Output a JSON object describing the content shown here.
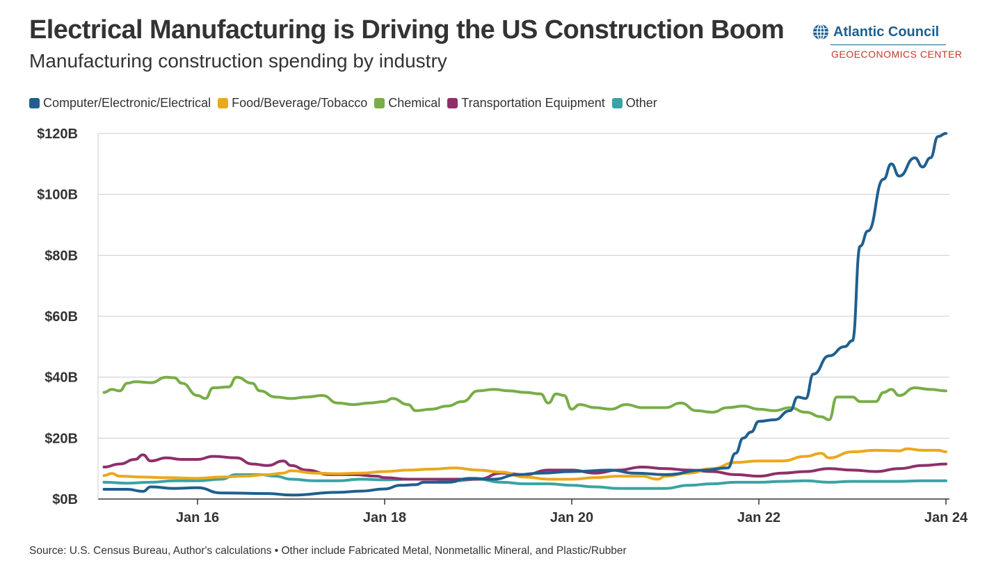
{
  "header": {
    "title": "Electrical Manufacturing is Driving the US Construction Boom",
    "subtitle": "Manufacturing construction spending by industry"
  },
  "logo": {
    "name": "Atlantic Council",
    "subtitle": "GEOECONOMICS CENTER",
    "icon": "globe-icon"
  },
  "footer": {
    "source": "Source: U.S. Census Bureau, Author's calculations • Other include Fabricated Metal, Nonmetallic Mineral, and Plastic/Rubber"
  },
  "chart_data": {
    "type": "line",
    "title": "Electrical Manufacturing is Driving the US Construction Boom",
    "subtitle": "Manufacturing construction spending by industry",
    "xlabel": "",
    "ylabel": "",
    "ylim": [
      0,
      120
    ],
    "xlim": [
      "2015-01",
      "2024-01"
    ],
    "y_unit": "billion USD",
    "grid": "horizontal",
    "legend_position": "top-left",
    "y_ticks": [
      {
        "value": 0,
        "label": "$0B"
      },
      {
        "value": 20,
        "label": "$20B"
      },
      {
        "value": 40,
        "label": "$40B"
      },
      {
        "value": 60,
        "label": "$60B"
      },
      {
        "value": 80,
        "label": "$80B"
      },
      {
        "value": 100,
        "label": "$100B"
      },
      {
        "value": 120,
        "label": "$120B"
      }
    ],
    "x_ticks": [
      {
        "value": "2016-01",
        "label": "Jan 16"
      },
      {
        "value": "2018-01",
        "label": "Jan 18"
      },
      {
        "value": "2020-01",
        "label": "Jan 20"
      },
      {
        "value": "2022-01",
        "label": "Jan 22"
      },
      {
        "value": "2024-01",
        "label": "Jan 24"
      }
    ],
    "series": [
      {
        "name": "Computer/Electronic/Electrical",
        "color": "#1f5f8f",
        "points": [
          [
            "2015-01",
            3.2
          ],
          [
            "2015-04",
            3.2
          ],
          [
            "2015-06",
            2.5
          ],
          [
            "2015-07",
            4.0
          ],
          [
            "2015-10",
            3.5
          ],
          [
            "2016-01",
            3.7
          ],
          [
            "2016-04",
            2.0
          ],
          [
            "2016-10",
            1.8
          ],
          [
            "2017-01",
            1.3
          ],
          [
            "2017-07",
            2.2
          ],
          [
            "2017-10",
            2.6
          ],
          [
            "2018-01",
            3.3
          ],
          [
            "2018-03",
            4.5
          ],
          [
            "2018-05",
            4.7
          ],
          [
            "2018-06",
            5.5
          ],
          [
            "2018-09",
            5.5
          ],
          [
            "2018-12",
            6.8
          ],
          [
            "2019-03",
            6.5
          ],
          [
            "2019-06",
            8.0
          ],
          [
            "2019-09",
            8.5
          ],
          [
            "2020-01",
            9.0
          ],
          [
            "2020-06",
            9.5
          ],
          [
            "2020-09",
            8.5
          ],
          [
            "2021-01",
            8.0
          ],
          [
            "2021-06",
            9.5
          ],
          [
            "2021-09",
            10.2
          ],
          [
            "2021-10",
            15.0
          ],
          [
            "2021-11",
            20.0
          ],
          [
            "2021-12",
            22.0
          ],
          [
            "2022-01",
            25.5
          ],
          [
            "2022-03",
            26.0
          ],
          [
            "2022-05",
            29.0
          ],
          [
            "2022-06",
            33.5
          ],
          [
            "2022-07",
            33.0
          ],
          [
            "2022-08",
            41.0
          ],
          [
            "2022-10",
            47.0
          ],
          [
            "2022-12",
            50.0
          ],
          [
            "2023-01",
            52.0
          ],
          [
            "2023-02",
            83.0
          ],
          [
            "2023-03",
            88.0
          ],
          [
            "2023-05",
            105.0
          ],
          [
            "2023-06",
            110.0
          ],
          [
            "2023-07",
            106.0
          ],
          [
            "2023-09",
            112.0
          ],
          [
            "2023-10",
            109.0
          ],
          [
            "2023-11",
            112.0
          ],
          [
            "2023-12",
            119.0
          ],
          [
            "2024-01",
            120.0
          ]
        ]
      },
      {
        "name": "Food/Beverage/Tobacco",
        "color": "#eaa91c",
        "points": [
          [
            "2015-01",
            7.7
          ],
          [
            "2015-02",
            8.4
          ],
          [
            "2015-03",
            7.5
          ],
          [
            "2015-06",
            7.2
          ],
          [
            "2015-09",
            7.0
          ],
          [
            "2016-01",
            6.8
          ],
          [
            "2016-04",
            7.2
          ],
          [
            "2016-07",
            7.5
          ],
          [
            "2016-10",
            8.0
          ],
          [
            "2016-12",
            8.5
          ],
          [
            "2017-01",
            9.3
          ],
          [
            "2017-04",
            8.5
          ],
          [
            "2017-07",
            8.3
          ],
          [
            "2017-10",
            8.5
          ],
          [
            "2018-01",
            9.0
          ],
          [
            "2018-04",
            9.5
          ],
          [
            "2018-07",
            9.8
          ],
          [
            "2018-10",
            10.2
          ],
          [
            "2019-01",
            9.5
          ],
          [
            "2019-04",
            8.8
          ],
          [
            "2019-07",
            7.2
          ],
          [
            "2019-10",
            6.5
          ],
          [
            "2020-01",
            6.5
          ],
          [
            "2020-04",
            7.0
          ],
          [
            "2020-07",
            7.5
          ],
          [
            "2020-10",
            7.5
          ],
          [
            "2020-12",
            6.5
          ],
          [
            "2021-01",
            7.5
          ],
          [
            "2021-04",
            8.5
          ],
          [
            "2021-07",
            10.0
          ],
          [
            "2021-10",
            12.0
          ],
          [
            "2022-01",
            12.5
          ],
          [
            "2022-04",
            12.5
          ],
          [
            "2022-07",
            14.0
          ],
          [
            "2022-09",
            15.0
          ],
          [
            "2022-10",
            13.5
          ],
          [
            "2023-01",
            15.5
          ],
          [
            "2023-04",
            16.0
          ],
          [
            "2023-07",
            15.8
          ],
          [
            "2023-08",
            16.5
          ],
          [
            "2023-10",
            16.0
          ],
          [
            "2023-12",
            16.0
          ],
          [
            "2024-01",
            15.5
          ]
        ]
      },
      {
        "name": "Chemical",
        "color": "#78ad47",
        "points": [
          [
            "2015-01",
            35.0
          ],
          [
            "2015-02",
            36.0
          ],
          [
            "2015-03",
            35.5
          ],
          [
            "2015-04",
            38.0
          ],
          [
            "2015-05",
            38.5
          ],
          [
            "2015-07",
            38.2
          ],
          [
            "2015-09",
            40.0
          ],
          [
            "2015-10",
            39.8
          ],
          [
            "2015-11",
            38.0
          ],
          [
            "2016-01",
            34.0
          ],
          [
            "2016-02",
            33.0
          ],
          [
            "2016-03",
            36.5
          ],
          [
            "2016-05",
            36.8
          ],
          [
            "2016-06",
            40.0
          ],
          [
            "2016-08",
            38.0
          ],
          [
            "2016-09",
            35.5
          ],
          [
            "2016-11",
            33.5
          ],
          [
            "2017-01",
            33.0
          ],
          [
            "2017-03",
            33.5
          ],
          [
            "2017-05",
            34.0
          ],
          [
            "2017-07",
            31.5
          ],
          [
            "2017-09",
            31.0
          ],
          [
            "2017-11",
            31.5
          ],
          [
            "2018-01",
            32.0
          ],
          [
            "2018-02",
            33.0
          ],
          [
            "2018-04",
            31.0
          ],
          [
            "2018-05",
            29.0
          ],
          [
            "2018-07",
            29.5
          ],
          [
            "2018-09",
            30.5
          ],
          [
            "2018-11",
            32.0
          ],
          [
            "2019-01",
            35.5
          ],
          [
            "2019-03",
            36.0
          ],
          [
            "2019-05",
            35.5
          ],
          [
            "2019-07",
            35.0
          ],
          [
            "2019-09",
            34.5
          ],
          [
            "2019-10",
            31.5
          ],
          [
            "2019-11",
            34.5
          ],
          [
            "2019-12",
            34.0
          ],
          [
            "2020-01",
            29.5
          ],
          [
            "2020-02",
            31.0
          ],
          [
            "2020-04",
            30.0
          ],
          [
            "2020-06",
            29.5
          ],
          [
            "2020-08",
            31.0
          ],
          [
            "2020-10",
            30.0
          ],
          [
            "2021-01",
            30.0
          ],
          [
            "2021-03",
            31.5
          ],
          [
            "2021-05",
            29.0
          ],
          [
            "2021-07",
            28.5
          ],
          [
            "2021-09",
            30.0
          ],
          [
            "2021-11",
            30.5
          ],
          [
            "2022-01",
            29.5
          ],
          [
            "2022-03",
            29.0
          ],
          [
            "2022-05",
            30.0
          ],
          [
            "2022-07",
            28.5
          ],
          [
            "2022-09",
            27.0
          ],
          [
            "2022-10",
            26.0
          ],
          [
            "2022-11",
            33.5
          ],
          [
            "2023-01",
            33.5
          ],
          [
            "2023-02",
            32.0
          ],
          [
            "2023-04",
            32.0
          ],
          [
            "2023-05",
            35.0
          ],
          [
            "2023-06",
            36.0
          ],
          [
            "2023-07",
            34.0
          ],
          [
            "2023-09",
            36.5
          ],
          [
            "2023-11",
            36.0
          ],
          [
            "2024-01",
            35.5
          ]
        ]
      },
      {
        "name": "Transportation Equipment",
        "color": "#8e2f6a",
        "points": [
          [
            "2015-01",
            10.5
          ],
          [
            "2015-03",
            11.5
          ],
          [
            "2015-05",
            13.0
          ],
          [
            "2015-06",
            14.5
          ],
          [
            "2015-07",
            12.5
          ],
          [
            "2015-09",
            13.5
          ],
          [
            "2015-11",
            13.0
          ],
          [
            "2016-01",
            13.0
          ],
          [
            "2016-03",
            14.0
          ],
          [
            "2016-06",
            13.5
          ],
          [
            "2016-08",
            11.5
          ],
          [
            "2016-10",
            11.0
          ],
          [
            "2016-12",
            12.5
          ],
          [
            "2017-01",
            11.0
          ],
          [
            "2017-03",
            9.5
          ],
          [
            "2017-06",
            8.0
          ],
          [
            "2017-09",
            8.0
          ],
          [
            "2017-12",
            7.5
          ],
          [
            "2018-01",
            7.0
          ],
          [
            "2018-04",
            6.5
          ],
          [
            "2018-07",
            6.5
          ],
          [
            "2018-10",
            6.5
          ],
          [
            "2019-01",
            6.5
          ],
          [
            "2019-04",
            8.5
          ],
          [
            "2019-07",
            8.0
          ],
          [
            "2019-10",
            9.5
          ],
          [
            "2020-01",
            9.5
          ],
          [
            "2020-04",
            8.5
          ],
          [
            "2020-07",
            9.5
          ],
          [
            "2020-10",
            10.5
          ],
          [
            "2021-01",
            10.0
          ],
          [
            "2021-04",
            9.5
          ],
          [
            "2021-07",
            9.0
          ],
          [
            "2021-10",
            8.0
          ],
          [
            "2022-01",
            7.5
          ],
          [
            "2022-04",
            8.5
          ],
          [
            "2022-07",
            9.0
          ],
          [
            "2022-10",
            10.0
          ],
          [
            "2023-01",
            9.5
          ],
          [
            "2023-04",
            9.0
          ],
          [
            "2023-07",
            10.0
          ],
          [
            "2023-10",
            11.0
          ],
          [
            "2024-01",
            11.5
          ]
        ]
      },
      {
        "name": "Other",
        "color": "#3aa3a3",
        "points": [
          [
            "2015-01",
            5.5
          ],
          [
            "2015-04",
            5.2
          ],
          [
            "2015-07",
            5.5
          ],
          [
            "2015-10",
            6.0
          ],
          [
            "2016-01",
            6.0
          ],
          [
            "2016-04",
            6.5
          ],
          [
            "2016-06",
            8.0
          ],
          [
            "2016-09",
            8.0
          ],
          [
            "2016-11",
            7.5
          ],
          [
            "2017-01",
            6.5
          ],
          [
            "2017-04",
            6.0
          ],
          [
            "2017-07",
            6.0
          ],
          [
            "2017-10",
            6.5
          ],
          [
            "2018-01",
            6.3
          ],
          [
            "2018-04",
            6.5
          ],
          [
            "2018-07",
            6.5
          ],
          [
            "2018-10",
            6.0
          ],
          [
            "2019-01",
            6.5
          ],
          [
            "2019-04",
            5.5
          ],
          [
            "2019-07",
            5.0
          ],
          [
            "2019-10",
            5.0
          ],
          [
            "2020-01",
            4.5
          ],
          [
            "2020-04",
            4.0
          ],
          [
            "2020-07",
            3.5
          ],
          [
            "2020-10",
            3.5
          ],
          [
            "2021-01",
            3.5
          ],
          [
            "2021-04",
            4.5
          ],
          [
            "2021-07",
            5.0
          ],
          [
            "2021-10",
            5.5
          ],
          [
            "2022-01",
            5.5
          ],
          [
            "2022-04",
            5.8
          ],
          [
            "2022-07",
            6.0
          ],
          [
            "2022-10",
            5.5
          ],
          [
            "2023-01",
            5.8
          ],
          [
            "2023-04",
            5.8
          ],
          [
            "2023-07",
            5.8
          ],
          [
            "2023-10",
            6.0
          ],
          [
            "2024-01",
            6.0
          ]
        ]
      }
    ]
  }
}
